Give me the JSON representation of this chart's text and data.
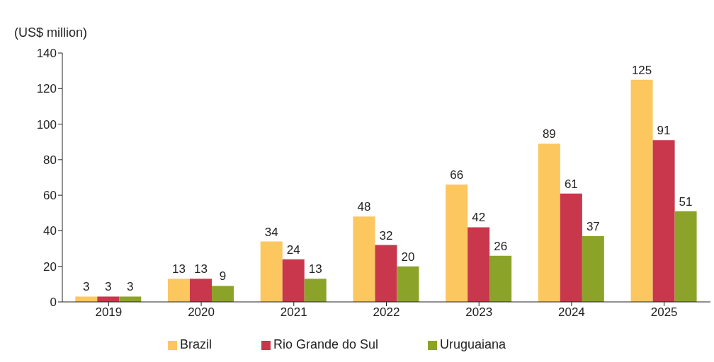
{
  "chart_data": {
    "type": "bar",
    "ylabel": "(US$ million)",
    "categories": [
      "2019",
      "2020",
      "2021",
      "2022",
      "2023",
      "2024",
      "2025"
    ],
    "series": [
      {
        "name": "Brazil",
        "color": "#fcc75f",
        "values": [
          3,
          13,
          34,
          48,
          66,
          89,
          125
        ]
      },
      {
        "name": "Rio Grande do Sul",
        "color": "#c8374b",
        "values": [
          3,
          13,
          24,
          32,
          42,
          61,
          91
        ]
      },
      {
        "name": "Uruguaiana",
        "color": "#8ca32a",
        "values": [
          3,
          9,
          13,
          20,
          26,
          37,
          51
        ]
      }
    ],
    "ylim": [
      0,
      140
    ],
    "yticks": [
      0,
      20,
      40,
      60,
      80,
      100,
      120,
      140
    ],
    "grid": false,
    "legend": "bottom",
    "data_labels": true
  }
}
